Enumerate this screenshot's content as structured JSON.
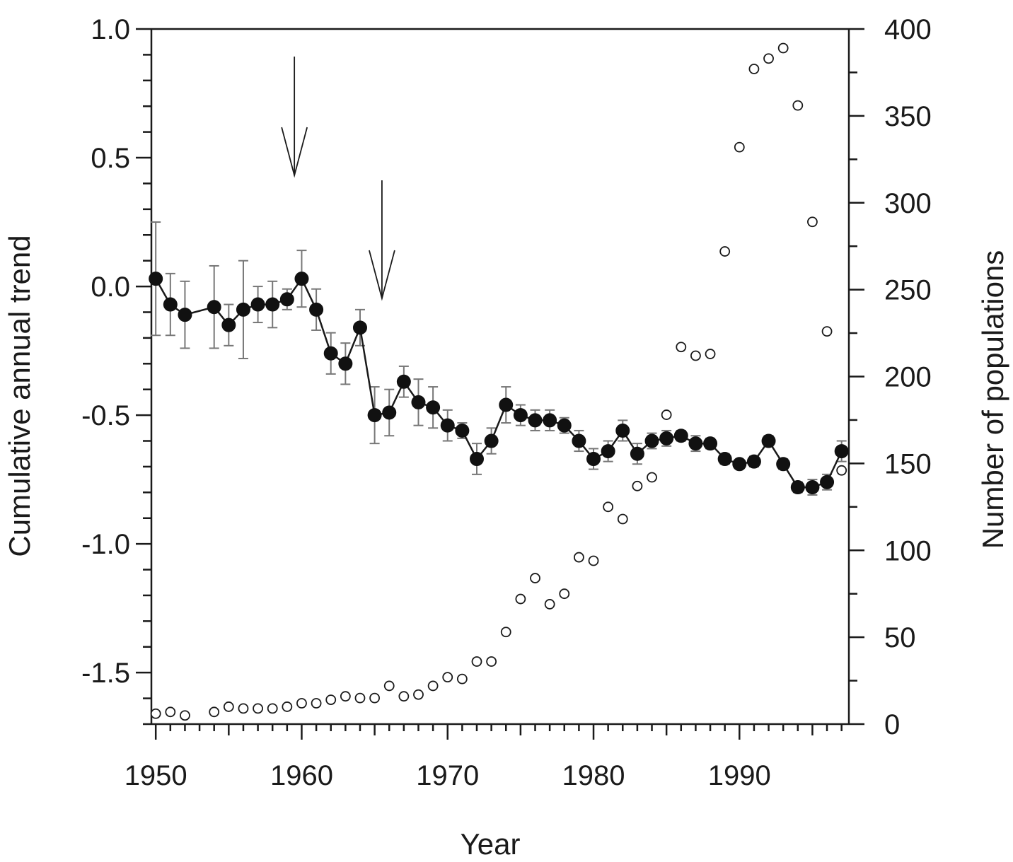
{
  "chart_data": {
    "type": "line",
    "xlabel": "Year",
    "ylabel_left": "Cumulative annual trend",
    "ylabel_right": "Number of populations",
    "xlim": [
      1949.7,
      1997.5
    ],
    "ylim_left": [
      -1.7,
      1.0
    ],
    "ylim_right": [
      0,
      400
    ],
    "x_ticks": [
      1950,
      1960,
      1970,
      1980,
      1990
    ],
    "x_tick_labels": [
      "1950",
      "1960",
      "1970",
      "1980",
      "1990"
    ],
    "y_left_ticks": [
      1.0,
      0.5,
      0.0,
      -0.5,
      -1.0,
      -1.5
    ],
    "y_left_tick_labels": [
      "1.0",
      "0.5",
      "0.0",
      "-0.5",
      "-1.0",
      "-1.5"
    ],
    "y_right_ticks": [
      400,
      350,
      300,
      250,
      200,
      150,
      100,
      50,
      0
    ],
    "y_right_tick_labels": [
      "400",
      "350",
      "300",
      "250",
      "200",
      "150",
      "100",
      "50",
      "0"
    ],
    "arrows_at_years": [
      1959.5,
      1965.5
    ],
    "series": [
      {
        "axis": "left",
        "style": "filled circles joined by line with error bars",
        "x": [
          1950,
          1951,
          1952,
          1954,
          1955,
          1956,
          1957,
          1958,
          1959,
          1960,
          1961,
          1962,
          1963,
          1964,
          1965,
          1966,
          1967,
          1968,
          1969,
          1970,
          1971,
          1972,
          1973,
          1974,
          1975,
          1976,
          1977,
          1978,
          1979,
          1980,
          1981,
          1982,
          1983,
          1984,
          1985,
          1986,
          1987,
          1988,
          1989,
          1990,
          1991,
          1992,
          1993,
          1994,
          1995,
          1996,
          1997
        ],
        "y": [
          0.03,
          -0.07,
          -0.11,
          -0.08,
          -0.15,
          -0.09,
          -0.07,
          -0.07,
          -0.05,
          0.03,
          -0.09,
          -0.26,
          -0.3,
          -0.16,
          -0.5,
          -0.49,
          -0.37,
          -0.45,
          -0.47,
          -0.54,
          -0.56,
          -0.67,
          -0.6,
          -0.46,
          -0.5,
          -0.52,
          -0.52,
          -0.54,
          -0.6,
          -0.67,
          -0.64,
          -0.56,
          -0.65,
          -0.6,
          -0.59,
          -0.58,
          -0.61,
          -0.61,
          -0.67,
          -0.69,
          -0.68,
          -0.6,
          -0.69,
          -0.78,
          -0.78,
          -0.76,
          -0.64
        ],
        "err": [
          0.22,
          0.12,
          0.13,
          0.16,
          0.08,
          0.19,
          0.07,
          0.09,
          0.04,
          0.11,
          0.08,
          0.08,
          0.08,
          0.07,
          0.11,
          0.09,
          0.06,
          0.09,
          0.08,
          0.06,
          0.03,
          0.06,
          0.05,
          0.07,
          0.04,
          0.04,
          0.04,
          0.03,
          0.04,
          0.04,
          0.04,
          0.04,
          0.04,
          0.03,
          0.03,
          0.02,
          0.03,
          0.02,
          0.02,
          0.01,
          0.02,
          0.02,
          0.02,
          0.02,
          0.03,
          0.03,
          0.04
        ]
      },
      {
        "axis": "right",
        "style": "open circles",
        "x": [
          1950,
          1951,
          1952,
          1954,
          1955,
          1956,
          1957,
          1958,
          1959,
          1960,
          1961,
          1962,
          1963,
          1964,
          1965,
          1966,
          1967,
          1968,
          1969,
          1970,
          1971,
          1972,
          1973,
          1974,
          1975,
          1976,
          1977,
          1978,
          1979,
          1980,
          1981,
          1982,
          1983,
          1984,
          1985,
          1986,
          1987,
          1988,
          1989,
          1990,
          1991,
          1992,
          1993,
          1994,
          1995,
          1996,
          1997
        ],
        "y": [
          6,
          7,
          5,
          7,
          10,
          9,
          9,
          9,
          10,
          12,
          12,
          14,
          16,
          15,
          15,
          22,
          16,
          17,
          22,
          27,
          26,
          36,
          36,
          53,
          72,
          84,
          69,
          75,
          96,
          94,
          125,
          118,
          137,
          142,
          178,
          217,
          212,
          213,
          272,
          332,
          377,
          383,
          389,
          356,
          289,
          226,
          146
        ]
      }
    ]
  }
}
